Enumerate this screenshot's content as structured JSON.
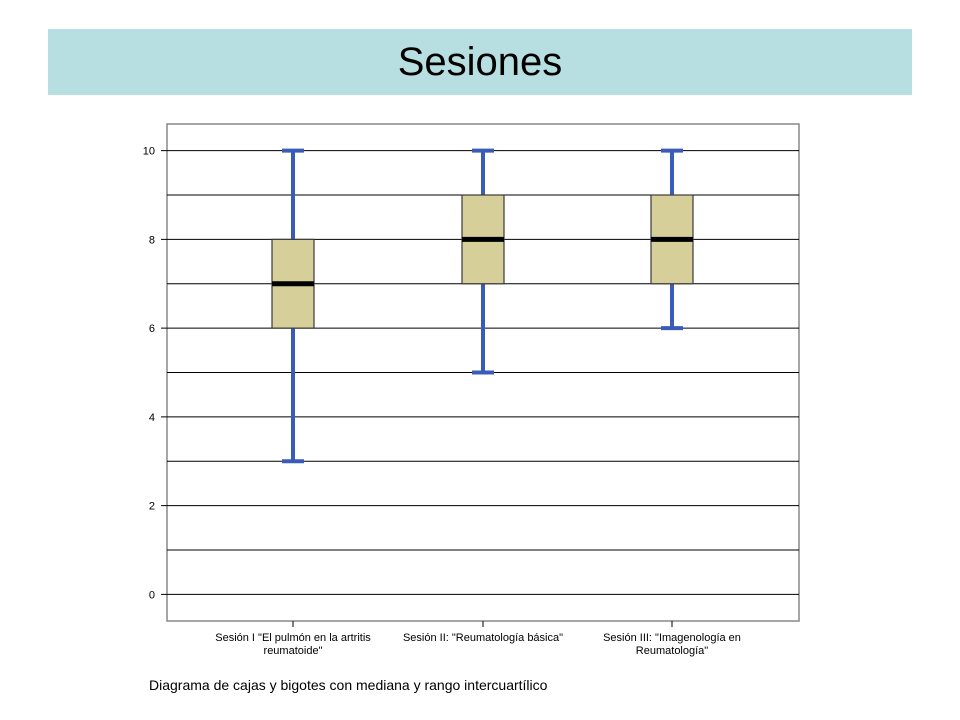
{
  "slide": {
    "title": "Sesiones",
    "caption": "Diagrama de cajas y bigotes con mediana y rango intercuartílico"
  },
  "chart_data": {
    "type": "boxplot",
    "title": "",
    "xlabel": "",
    "ylabel": "",
    "ylim": [
      -0.6,
      10.6
    ],
    "yticks": [
      0,
      2,
      4,
      6,
      8,
      10
    ],
    "grid": true,
    "gridlines": [
      0,
      1,
      2,
      3,
      4,
      5,
      6,
      7,
      8,
      9,
      10
    ],
    "categories": [
      [
        "Sesión I \"El pulmón en la artritis",
        "reumatoide\""
      ],
      [
        "Sesión II: \"Reumatología básica\""
      ],
      [
        "Sesión III: \"Imagenología en",
        "Reumatología\""
      ]
    ],
    "boxes": [
      {
        "min": 3,
        "q1": 6,
        "median": 7,
        "q3": 8,
        "max": 10
      },
      {
        "min": 5,
        "q1": 7,
        "median": 8,
        "q3": 9,
        "max": 10
      },
      {
        "min": 6,
        "q1": 7,
        "median": 8,
        "q3": 9,
        "max": 10
      }
    ],
    "colors": {
      "box_fill": "#d6cf9a",
      "box_stroke": "#3a3a3a",
      "whisker": "#3a5cb8",
      "median": "#000000",
      "grid": "#000000",
      "plot_bg": "#ffffff"
    }
  }
}
